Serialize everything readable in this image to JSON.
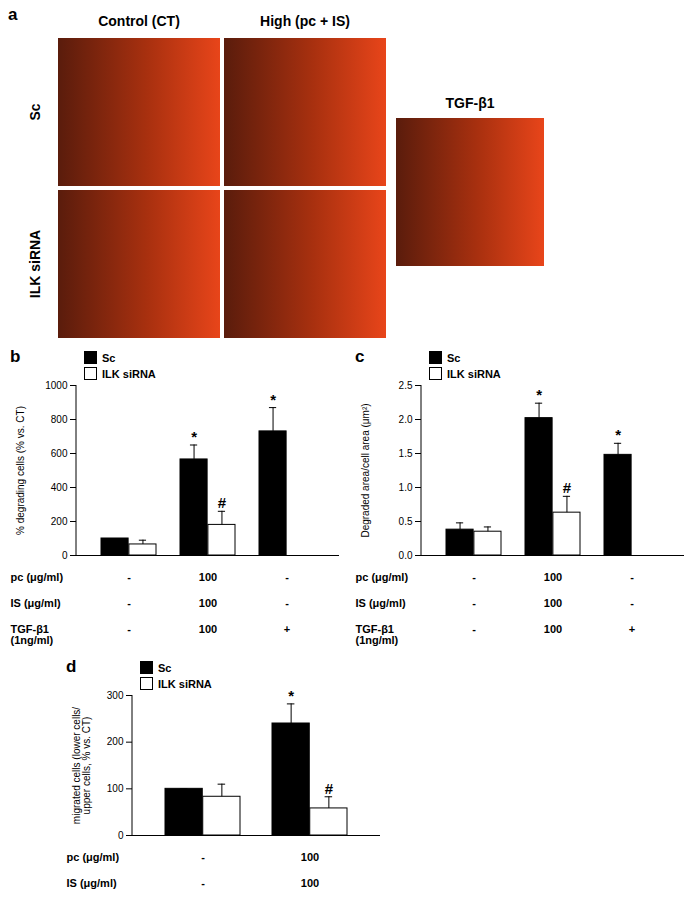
{
  "panel_a": {
    "label": "a",
    "columns": [
      "Control (CT)",
      "High (pc + IS)"
    ],
    "rows": [
      "Sc",
      "ILK siRNA"
    ],
    "extra_panel": "TGF-β1"
  },
  "chart_data": [
    {
      "type": "bar",
      "title": "b",
      "ylabel": "% degrading cells (% vs. CT)",
      "categories": [
        null,
        null,
        null
      ],
      "series": [
        {
          "name": "Sc",
          "color": "#000000",
          "values": [
            100,
            565,
            730
          ],
          "errors": [
            0,
            85,
            140
          ],
          "annotations": [
            null,
            "*",
            "*"
          ]
        },
        {
          "name": "ILK siRNA",
          "color": "#ffffff",
          "values": [
            65,
            180,
            null
          ],
          "errors": [
            25,
            80,
            null
          ],
          "annotations": [
            null,
            "#",
            null
          ]
        }
      ],
      "treatments": [
        {
          "label": "pc (μg/ml)",
          "values": [
            "-",
            "100",
            "-"
          ]
        },
        {
          "label": "IS (μg/ml)",
          "values": [
            "-",
            "100",
            "-"
          ]
        },
        {
          "label": "TGF-β1\n(1ng/ml)",
          "values": [
            "-",
            "100",
            "+"
          ]
        }
      ],
      "ylim": [
        0,
        1000
      ],
      "yticks": [
        0,
        200,
        400,
        600,
        800,
        1000
      ],
      "legend": "top-left"
    },
    {
      "type": "bar",
      "title": "c",
      "ylabel": "Degraded area/cell area (μm²)",
      "categories": [
        null,
        null,
        null
      ],
      "series": [
        {
          "name": "Sc",
          "color": "#000000",
          "values": [
            0.38,
            2.02,
            1.48
          ],
          "errors": [
            0.1,
            0.22,
            0.17
          ],
          "annotations": [
            null,
            "*",
            "*"
          ]
        },
        {
          "name": "ILK siRNA",
          "color": "#ffffff",
          "values": [
            0.35,
            0.63,
            null
          ],
          "errors": [
            0.07,
            0.24,
            null
          ],
          "annotations": [
            null,
            "#",
            null
          ]
        }
      ],
      "treatments": [
        {
          "label": "pc (μg/ml)",
          "values": [
            "-",
            "100",
            "-"
          ]
        },
        {
          "label": "IS (μg/ml)",
          "values": [
            "-",
            "100",
            "-"
          ]
        },
        {
          "label": "TGF-β1\n(1ng/ml)",
          "values": [
            "-",
            "100",
            "+"
          ]
        }
      ],
      "ylim": [
        0,
        2.5
      ],
      "yticks": [
        {
          "value": 0,
          "label": "0.0"
        },
        {
          "value": 0.5,
          "label": "0.5"
        },
        {
          "value": 1,
          "label": "1.0"
        },
        {
          "value": 1.5,
          "label": "1.5"
        },
        {
          "value": 2,
          "label": "2.0"
        },
        {
          "value": 2.5,
          "label": "2.5"
        }
      ],
      "legend": "top-left"
    },
    {
      "type": "bar",
      "title": "d",
      "ylabel": "migrated cells (lower cells/\nupper cells, % vs. CT)",
      "categories": [
        null,
        null
      ],
      "series": [
        {
          "name": "Sc",
          "color": "#000000",
          "values": [
            100,
            240
          ],
          "errors": [
            0,
            42
          ],
          "annotations": [
            null,
            "*"
          ]
        },
        {
          "name": "ILK siRNA",
          "color": "#ffffff",
          "values": [
            83,
            58
          ],
          "errors": [
            27,
            25
          ],
          "annotations": [
            null,
            "#"
          ]
        }
      ],
      "treatments": [
        {
          "label": "pc (μg/ml)",
          "values": [
            "-",
            "100"
          ]
        },
        {
          "label": "IS (μg/ml)",
          "values": [
            "-",
            "100"
          ]
        }
      ],
      "ylim": [
        0,
        300
      ],
      "yticks": [
        0,
        100,
        200,
        300
      ],
      "legend": "top-left"
    }
  ]
}
